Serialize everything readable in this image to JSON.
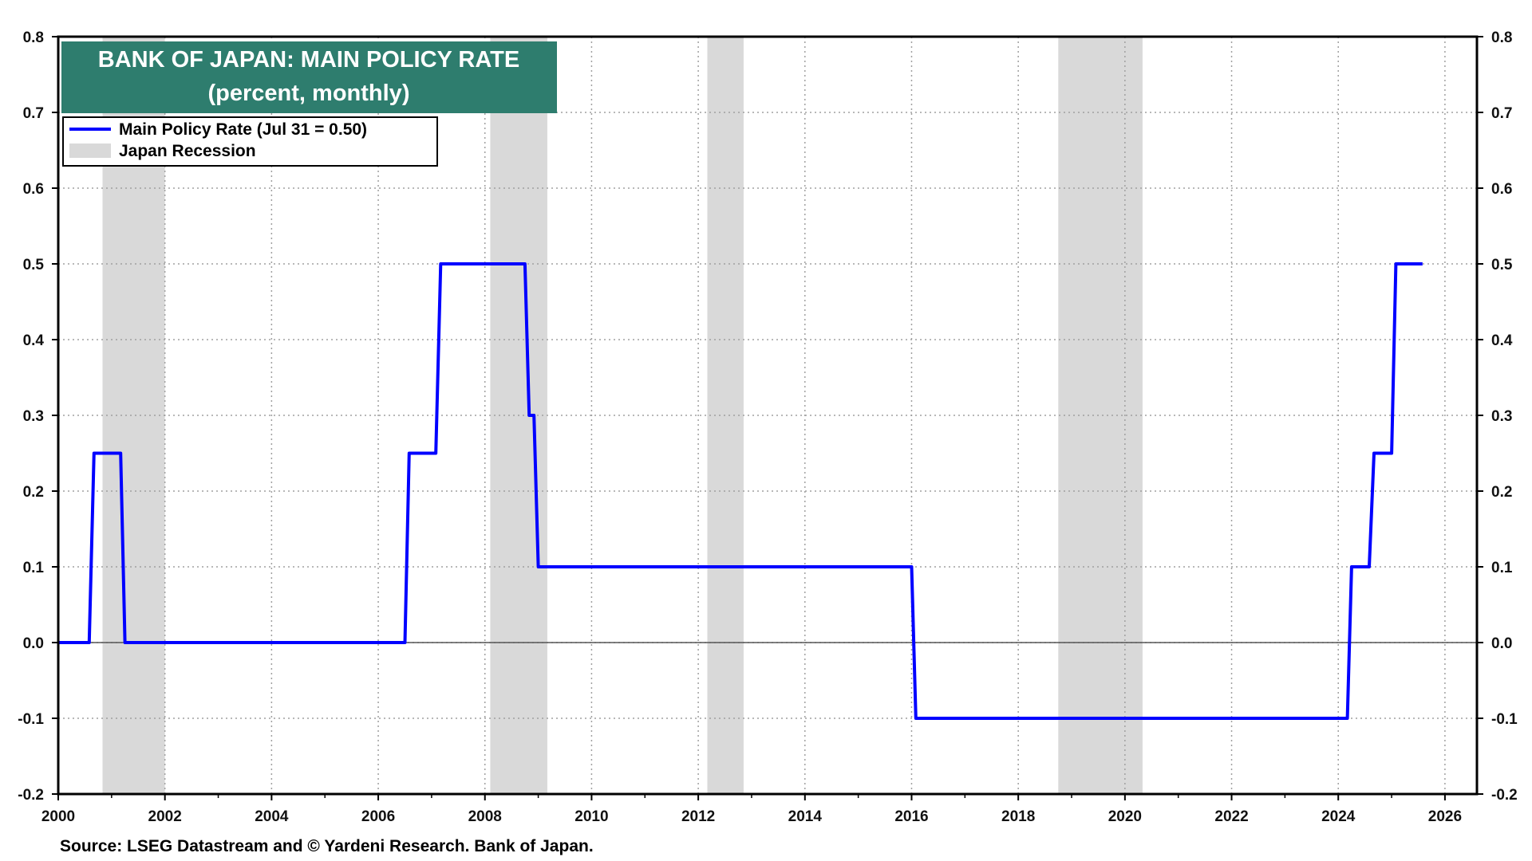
{
  "chart_data": {
    "type": "line",
    "title": "BANK OF JAPAN: MAIN POLICY RATE",
    "subtitle": "(percent, monthly)",
    "source": "Source: LSEG Datastream and © Yardeni Research. Bank of Japan.",
    "xlim": [
      2000,
      2026.6
    ],
    "ylim": [
      -0.2,
      0.8
    ],
    "x_ticks": [
      "2000",
      "2002",
      "2004",
      "2006",
      "2008",
      "2010",
      "2012",
      "2014",
      "2016",
      "2018",
      "2020",
      "2022",
      "2024",
      "2026"
    ],
    "y_ticks": [
      "0.8",
      "0.7",
      "0.6",
      "0.5",
      "0.4",
      "0.3",
      "0.2",
      "0.1",
      "0.0",
      "-0.1",
      "-0.2"
    ],
    "grid": true,
    "legend_position": "top-left",
    "colors": {
      "line": "#0000ff",
      "recession": "#d9d9d9",
      "title_bg": "#2e7d6e"
    },
    "recessions_legend": "Japan Recession",
    "recessions": [
      [
        2000.83,
        2002.0
      ],
      [
        2008.1,
        2009.17
      ],
      [
        2012.17,
        2012.85
      ],
      [
        2018.75,
        2020.33
      ]
    ],
    "series": [
      {
        "name": "Main Policy Rate (Jul 31 = 0.50)",
        "points": [
          [
            2000.0,
            0.0
          ],
          [
            2000.58,
            0.0
          ],
          [
            2000.67,
            0.25
          ],
          [
            2001.17,
            0.25
          ],
          [
            2001.25,
            0.0
          ],
          [
            2006.5,
            0.0
          ],
          [
            2006.58,
            0.25
          ],
          [
            2007.08,
            0.25
          ],
          [
            2007.17,
            0.5
          ],
          [
            2008.75,
            0.5
          ],
          [
            2008.83,
            0.3
          ],
          [
            2008.92,
            0.3
          ],
          [
            2009.0,
            0.1
          ],
          [
            2016.0,
            0.1
          ],
          [
            2016.08,
            -0.1
          ],
          [
            2024.17,
            -0.1
          ],
          [
            2024.25,
            0.1
          ],
          [
            2024.58,
            0.1
          ],
          [
            2024.67,
            0.25
          ],
          [
            2025.0,
            0.25
          ],
          [
            2025.08,
            0.5
          ],
          [
            2025.58,
            0.5
          ]
        ]
      }
    ]
  }
}
